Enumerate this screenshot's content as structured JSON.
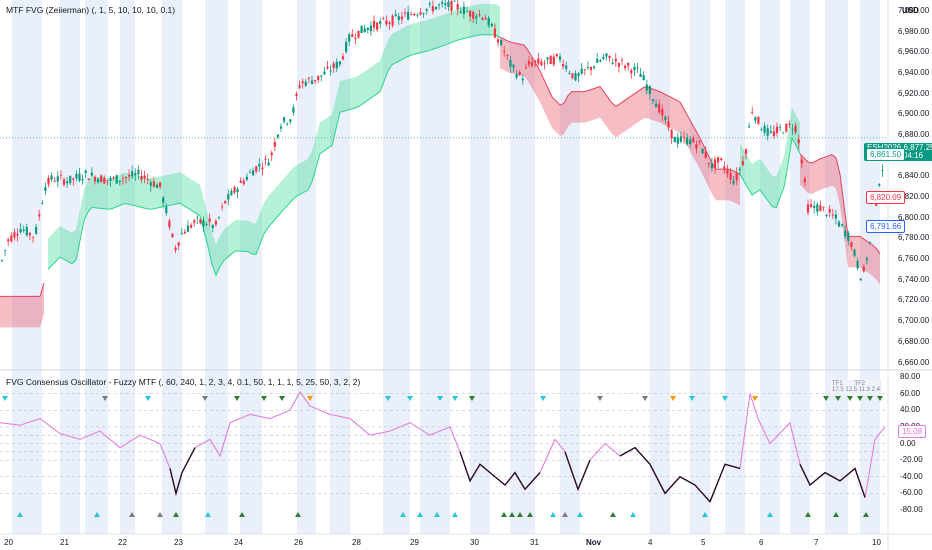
{
  "main_title": "MTF FVG (Zeiierman) (, 1, 5, 10, 10, 10, 0.1)",
  "osc_title": "FVG Consensus Oscillator - Fuzzy MTF (, 60, 240, 1, 2, 3, 4, 0.1, 50, 1, 1, 1, 5, 25, 50, 3, 2, 2)",
  "currency": "USD",
  "price_axis": [
    "7,000.00",
    "6,980.00",
    "6,960.00",
    "6,940.00",
    "6,920.00",
    "6,900.00",
    "6,880.00",
    "6,860.00",
    "6,840.00",
    "6,820.00",
    "6,800.00",
    "6,780.00",
    "6,760.00",
    "6,740.00",
    "6,720.00",
    "6,700.00",
    "6,680.00",
    "6,660.00"
  ],
  "osc_axis": [
    "80.00",
    "60.00",
    "40.00",
    "20.00",
    "0.00",
    "-20.00",
    "-40.00",
    "-60.00",
    "-80.00"
  ],
  "x_labels": [
    "20",
    "21",
    "22",
    "23",
    "24",
    "26",
    "28",
    "29",
    "30",
    "31",
    "Nov",
    "4",
    "5",
    "6",
    "7",
    "10"
  ],
  "symbol_badge": {
    "symbol": "ESH2026",
    "price": "6,877.25",
    "countdown": "04:16",
    "color": "#089981"
  },
  "level_badges": [
    {
      "text": "6,861.50",
      "color": "#089981",
      "value": 6861.5
    },
    {
      "text": "6,820.09",
      "color": "#f23645",
      "value": 6820.09
    },
    {
      "text": "6,791.66",
      "color": "#2962ff",
      "value": 6791.66
    }
  ],
  "osc_value_badge": {
    "text": "15.08",
    "value": 15.08
  },
  "osc_table": {
    "header": [
      "TF1",
      "",
      "TF2",
      ""
    ],
    "row": [
      "17.5",
      "12.5",
      "11.3",
      "2.4"
    ]
  },
  "colors": {
    "up": "#089981",
    "down": "#f23645",
    "fvg_up": "#2bd68a",
    "fvg_down": "#e8415a",
    "session": "#e8eefb",
    "osc_light": "#e07fe0",
    "osc_dark": "#2a0a2a"
  }
}
